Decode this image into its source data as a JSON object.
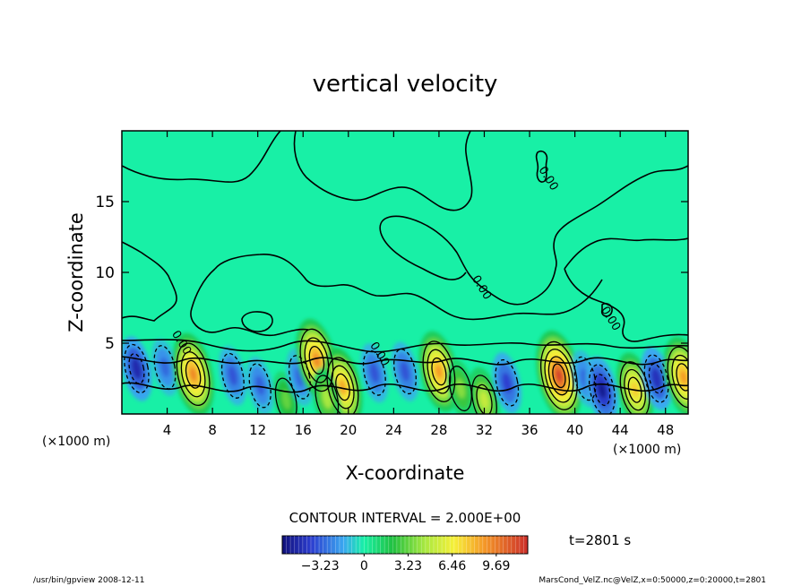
{
  "chart_data": {
    "type": "heatmap",
    "title": "vertical velocity",
    "xlabel": "X-coordinate",
    "ylabel": "Z-coordinate",
    "x_unit_left": "(×1000 m)",
    "x_unit_right": "(×1000 m)",
    "xlim": [
      0,
      50
    ],
    "ylim": [
      0,
      20
    ],
    "x_ticks": [
      4,
      8,
      12,
      16,
      20,
      24,
      28,
      32,
      36,
      40,
      44,
      48
    ],
    "y_ticks": [
      5,
      10,
      15
    ],
    "contour_interval_text": "CONTOUR INTERVAL = 2.000E+00",
    "time_text": "t=2801 s",
    "contour_labels": [
      {
        "text": "0.00",
        "x": 31.5,
        "z": 8.8
      },
      {
        "text": "0.00",
        "x": 37.4,
        "z": 16.5
      },
      {
        "text": "0.00",
        "x": 42.9,
        "z": 6.6
      },
      {
        "text": "0.00",
        "x": 5.0,
        "z": 4.9
      },
      {
        "text": "0.00",
        "x": 22.5,
        "z": 4.1
      }
    ],
    "colorbar": {
      "range": [
        -6.0,
        12.0
      ],
      "tick_values": [
        -3.23,
        0,
        3.23,
        6.46,
        9.69
      ],
      "tick_labels": [
        "−3.23",
        "0",
        "3.23",
        "6.46",
        "9.69"
      ]
    },
    "extrema": [
      {
        "x": 1.3,
        "z": 3.2,
        "value": -4.8
      },
      {
        "x": 3.8,
        "z": 3.3,
        "value": -3.0
      },
      {
        "x": 6.3,
        "z": 2.8,
        "value": 9.5
      },
      {
        "x": 9.8,
        "z": 2.7,
        "value": -3.5
      },
      {
        "x": 12.2,
        "z": 2.0,
        "value": -3.2
      },
      {
        "x": 14.5,
        "z": 1.0,
        "value": 3.0
      },
      {
        "x": 15.7,
        "z": 2.6,
        "value": -3.0
      },
      {
        "x": 17.2,
        "z": 3.8,
        "value": 9.5
      },
      {
        "x": 19.5,
        "z": 1.9,
        "value": 8.5
      },
      {
        "x": 18.1,
        "z": 1.1,
        "value": 4.0
      },
      {
        "x": 22.3,
        "z": 2.9,
        "value": -3.5
      },
      {
        "x": 25.0,
        "z": 3.0,
        "value": -3.5
      },
      {
        "x": 28.0,
        "z": 3.0,
        "value": 9.0
      },
      {
        "x": 29.9,
        "z": 1.8,
        "value": 3.5
      },
      {
        "x": 32.0,
        "z": 1.0,
        "value": 5.0
      },
      {
        "x": 34.0,
        "z": 2.2,
        "value": -4.0
      },
      {
        "x": 38.6,
        "z": 2.7,
        "value": 11.5
      },
      {
        "x": 40.9,
        "z": 2.5,
        "value": -3.0
      },
      {
        "x": 42.4,
        "z": 1.7,
        "value": -5.5
      },
      {
        "x": 45.3,
        "z": 1.7,
        "value": 7.5
      },
      {
        "x": 47.2,
        "z": 2.5,
        "value": -4.5
      },
      {
        "x": 49.6,
        "z": 2.6,
        "value": 9.0
      }
    ]
  },
  "footer": {
    "left": "/usr/bin/gpview   2008-12-11",
    "right": "MarsCond_VelZ.nc@VelZ,x=0:50000,z=0:20000,t=2801"
  }
}
